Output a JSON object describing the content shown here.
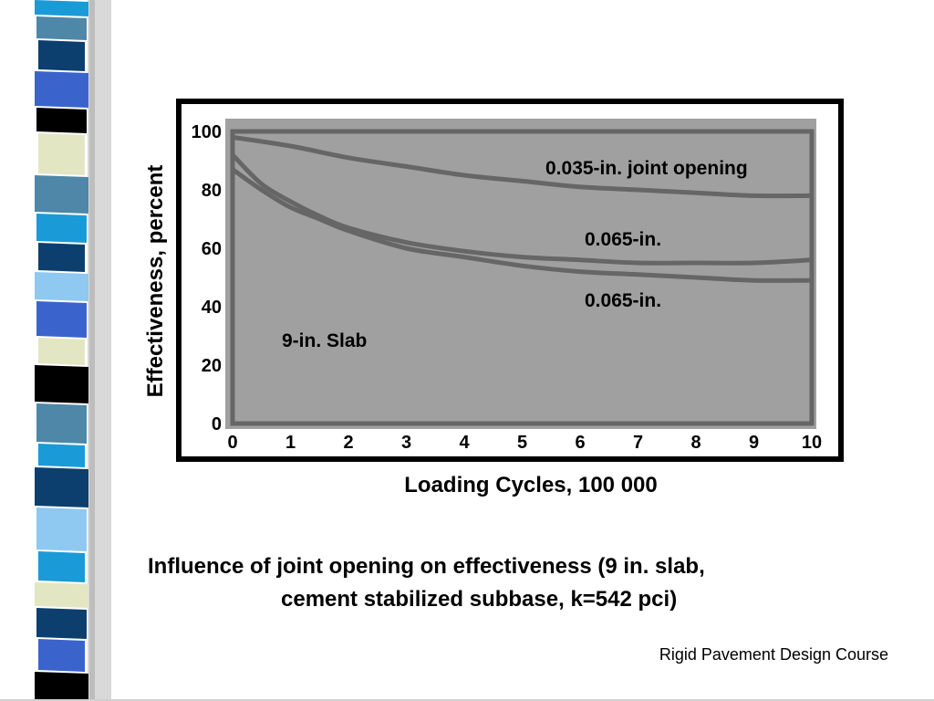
{
  "slide": {
    "caption_line1": "Influence of joint opening on effectiveness (9 in. slab,",
    "caption_line2": "cement stabilized subbase, k=542 pci)",
    "footer": "Rigid Pavement Design Course"
  },
  "colors": {
    "plot_background": "#a0a0a0",
    "curve": "#666666",
    "frame": "#000000",
    "strip_palette": [
      "#1a9bd7",
      "#4e87a8",
      "#0d3f6e",
      "#3a64cc",
      "#000000",
      "#e3e6c2",
      "#8fc8f0"
    ]
  },
  "chart_data": {
    "type": "line",
    "title": "",
    "xlabel": "Loading Cycles, 100 000",
    "ylabel": "Effectiveness, percent",
    "xlim": [
      0,
      10
    ],
    "ylim": [
      0,
      100
    ],
    "x_ticks": [
      "0",
      "1",
      "2",
      "3",
      "4",
      "5",
      "6",
      "7",
      "8",
      "9",
      "10"
    ],
    "y_ticks": [
      "0",
      "20",
      "40",
      "60",
      "80",
      "100"
    ],
    "grid": false,
    "series": [
      {
        "name": "0.035-in. joint opening",
        "x": [
          0,
          1,
          2,
          3,
          4,
          5,
          6,
          7,
          8,
          9,
          10
        ],
        "values": [
          98,
          95,
          91,
          88,
          85,
          83,
          81,
          80,
          79,
          78,
          78
        ]
      },
      {
        "name": "0.065-in.",
        "x": [
          0,
          0.5,
          1,
          1.5,
          2,
          3,
          4,
          5,
          6,
          7,
          8,
          9,
          10
        ],
        "values": [
          92,
          82,
          76,
          71,
          67,
          62,
          59,
          57,
          56,
          55,
          55,
          55,
          56
        ]
      },
      {
        "name": "0.065-in.",
        "x": [
          0,
          0.5,
          1,
          1.5,
          2,
          3,
          4,
          5,
          6,
          7,
          8,
          9,
          10
        ],
        "values": [
          87,
          80,
          74,
          70,
          66,
          60,
          57,
          54,
          52,
          51,
          50,
          49,
          49
        ]
      }
    ],
    "annotations": [
      {
        "text": "0.035-in. joint opening",
        "series": 0
      },
      {
        "text": "0.065-in.",
        "series": 1
      },
      {
        "text": "0.065-in.",
        "series": 2
      },
      {
        "text": "9-in. Slab"
      }
    ]
  }
}
